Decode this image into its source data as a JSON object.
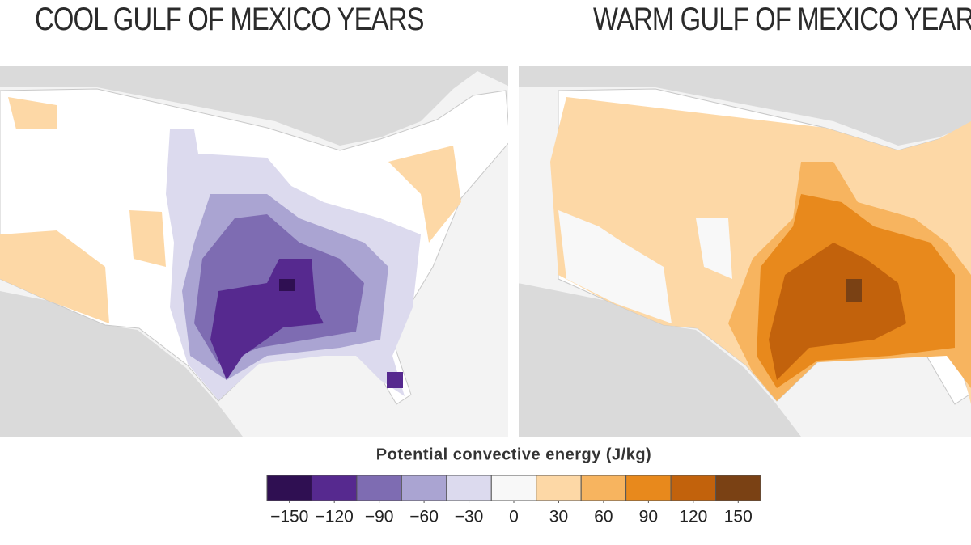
{
  "panels": [
    {
      "title": "COOL GULF OF MEXICO YEARS"
    },
    {
      "title": "WARM GULF OF MEXICO YEARS"
    }
  ],
  "legend": {
    "title": "Potential convective energy (J/kg)",
    "colors": [
      "#2f0f52",
      "#56298f",
      "#7e6cb2",
      "#aaa4d2",
      "#dcdaee",
      "#f8f8f8",
      "#fdd8a6",
      "#f7b45f",
      "#e8891c",
      "#c2620c",
      "#7a4114"
    ],
    "ticks": [
      {
        "value": -150,
        "label": "−150"
      },
      {
        "value": -120,
        "label": "−120"
      },
      {
        "value": -90,
        "label": "−90"
      },
      {
        "value": -60,
        "label": "−60"
      },
      {
        "value": -30,
        "label": "−30"
      },
      0,
      30,
      60,
      90,
      120,
      150
    ]
  }
}
